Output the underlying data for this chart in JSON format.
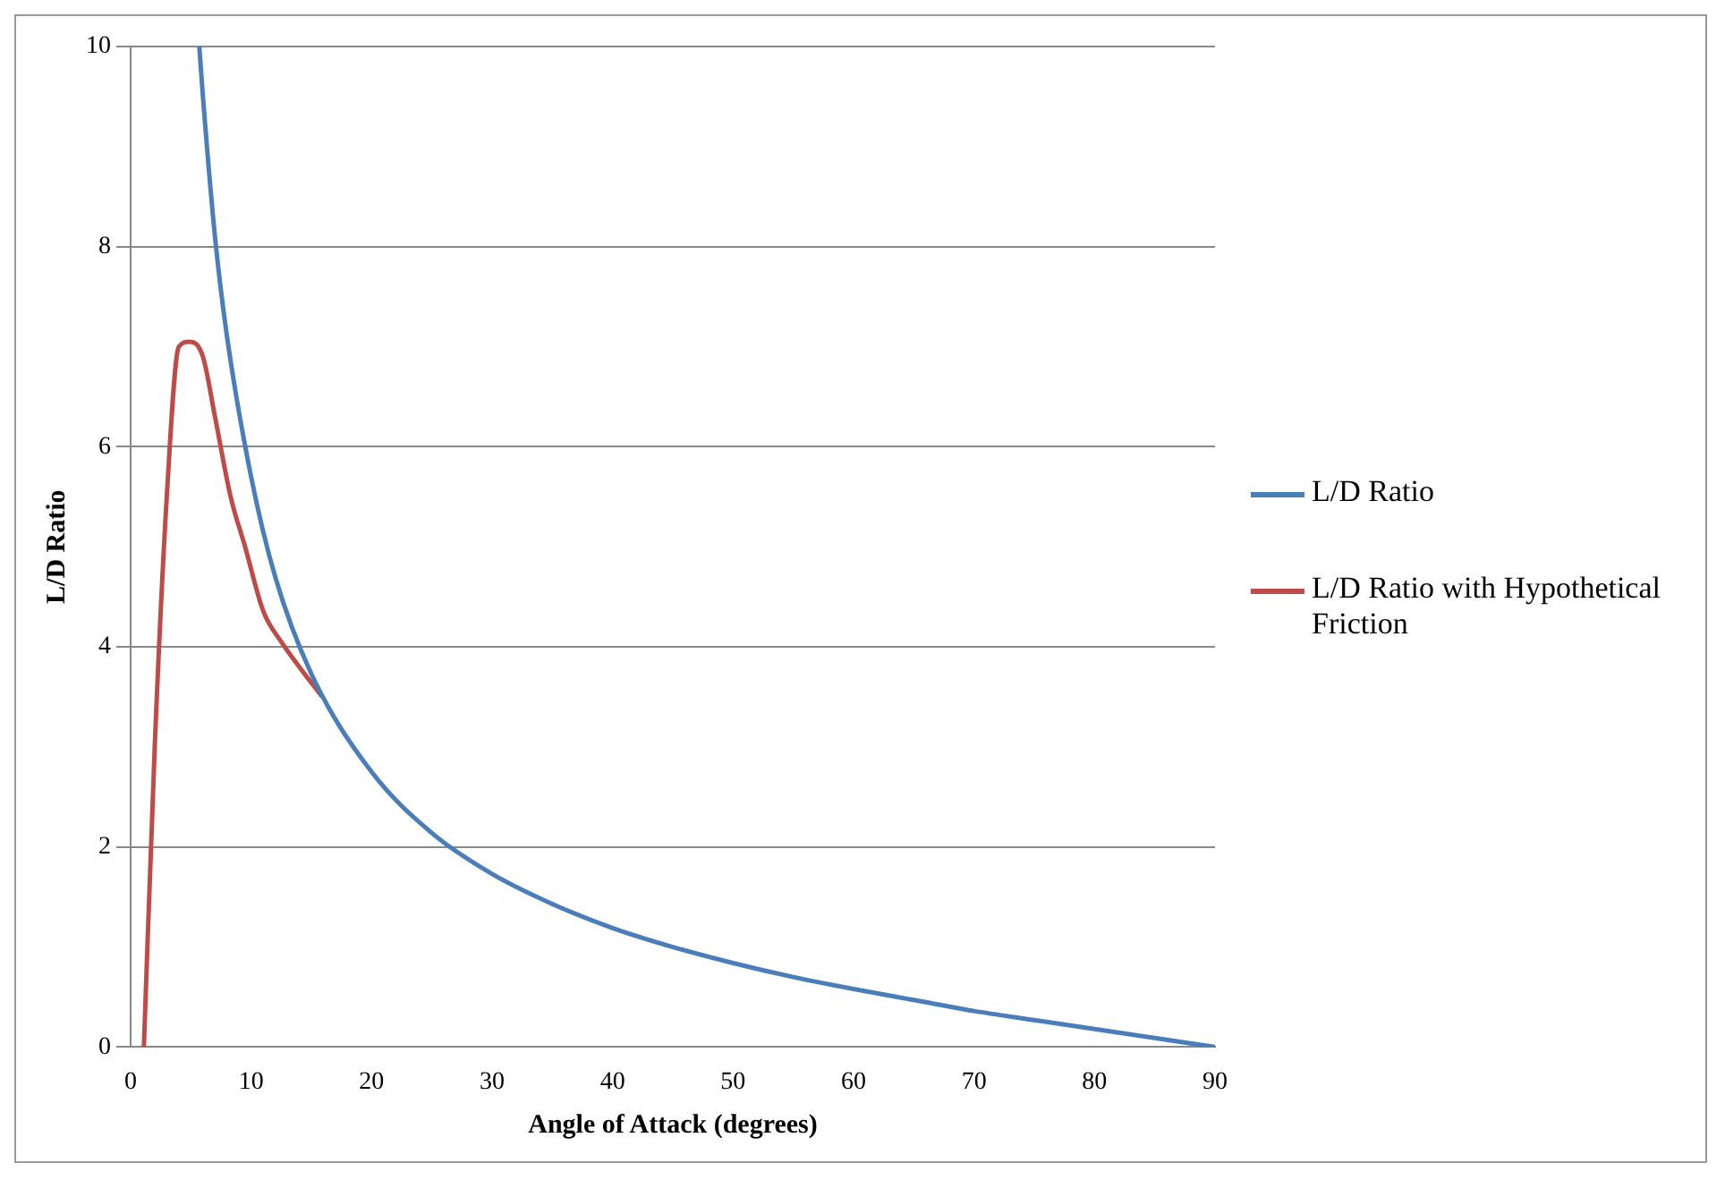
{
  "chart_data": {
    "type": "line",
    "xlabel": "Angle of Attack (degrees)",
    "ylabel": "L/D Ratio",
    "xlim": [
      0,
      90
    ],
    "xticks": [
      0,
      10,
      20,
      30,
      40,
      50,
      60,
      70,
      80,
      90
    ],
    "ylim": [
      0,
      10
    ],
    "yticks": [
      0,
      2,
      4,
      6,
      8,
      10
    ],
    "grid": "y",
    "legend": "right",
    "marker": "none",
    "line_style": "solid",
    "series": [
      {
        "name": "L/D Ratio",
        "color": "#4a7ebb",
        "x": [
          5.7,
          6,
          7,
          8,
          10,
          12,
          15,
          20,
          25,
          30,
          35,
          40,
          45,
          50,
          55,
          60,
          65,
          70,
          75,
          80,
          85,
          90
        ],
        "values": [
          10,
          9.5,
          8.1,
          7.1,
          5.7,
          4.7,
          3.73,
          2.75,
          2.14,
          1.73,
          1.43,
          1.19,
          1.0,
          0.84,
          0.7,
          0.58,
          0.47,
          0.36,
          0.27,
          0.18,
          0.09,
          0
        ]
      },
      {
        "name": "L/D Ratio with Hypothetical Friction",
        "color": "#be4b48",
        "x": [
          1.1,
          2,
          3,
          4,
          4.9,
          6,
          7,
          8.3,
          9.5,
          11,
          12.5,
          14,
          15.9
        ],
        "values": [
          0,
          3.0,
          5.5,
          7.0,
          7.05,
          6.9,
          6.3,
          5.5,
          5.0,
          4.36,
          4.05,
          3.8,
          3.5
        ]
      }
    ]
  }
}
